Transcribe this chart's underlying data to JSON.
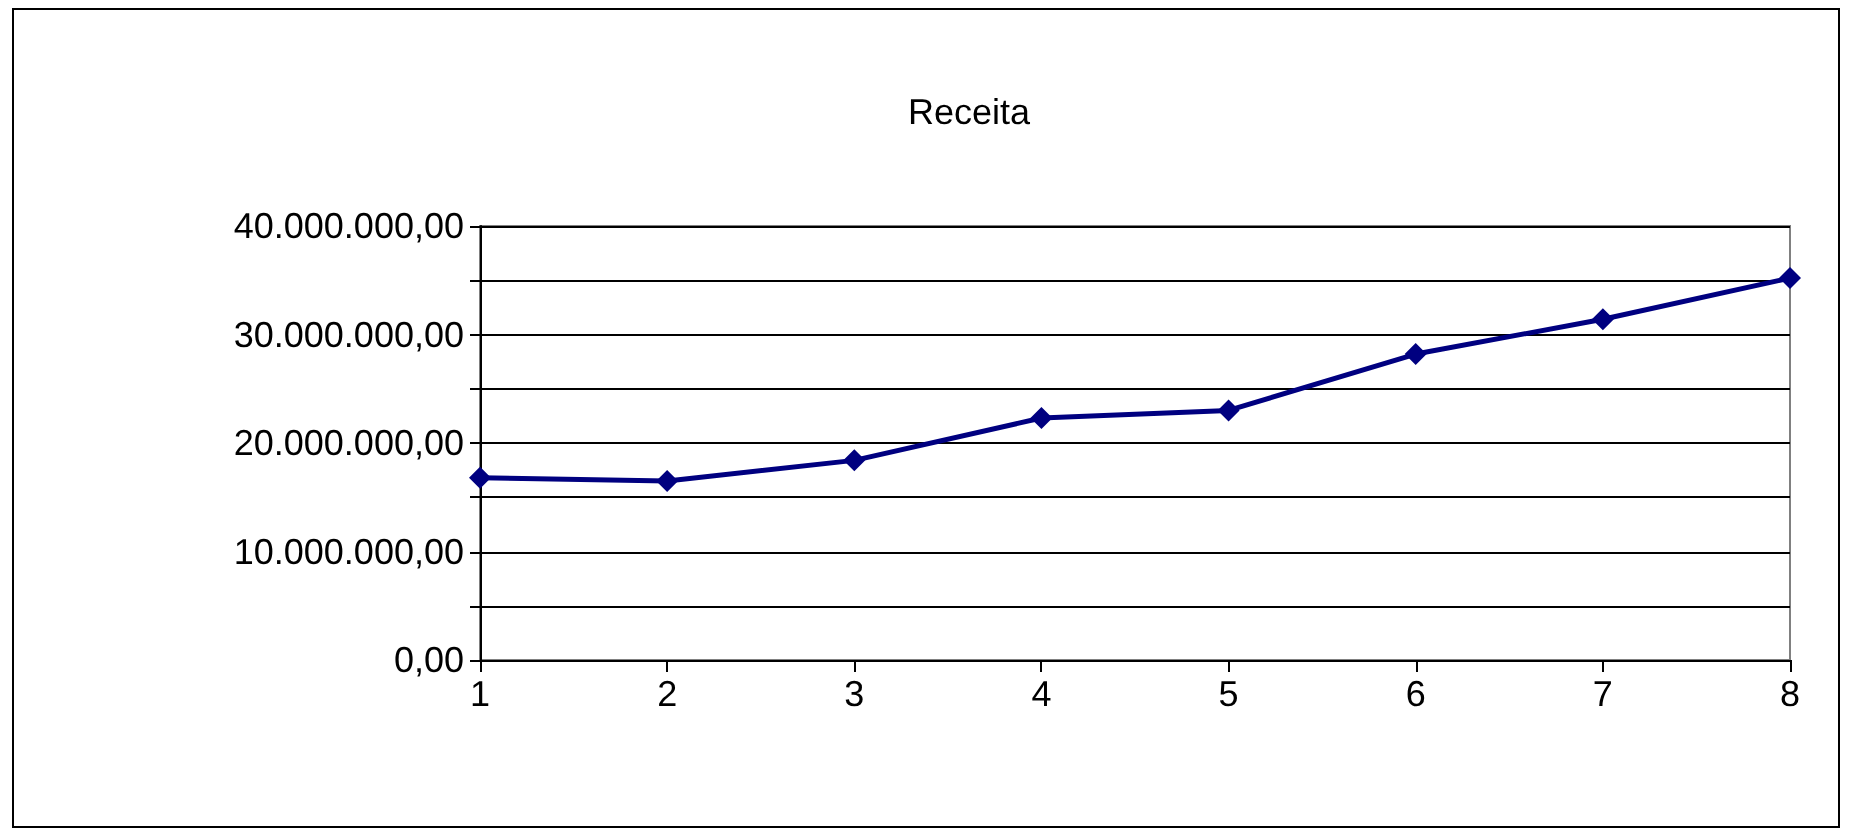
{
  "chart_data": {
    "type": "line",
    "title": "Receita",
    "x": [
      1,
      2,
      3,
      4,
      5,
      6,
      7,
      8
    ],
    "series": [
      {
        "color": "#000080",
        "values": [
          16800000,
          16500000,
          18400000,
          22300000,
          23000000,
          28200000,
          31400000,
          35200000
        ]
      }
    ],
    "xlim": [
      1,
      8
    ],
    "xticks": [
      1,
      2,
      3,
      4,
      5,
      6,
      7,
      8
    ],
    "ylim": [
      0,
      40000000
    ],
    "yticks": [
      {
        "value": 0,
        "label": "0,00"
      },
      {
        "value": 5000000,
        "label": null
      },
      {
        "value": 10000000,
        "label": "10.000.000,00"
      },
      {
        "value": 15000000,
        "label": null
      },
      {
        "value": 20000000,
        "label": "20.000.000,00"
      },
      {
        "value": 25000000,
        "label": null
      },
      {
        "value": 30000000,
        "label": "30.000.000,00"
      },
      {
        "value": 35000000,
        "label": null
      },
      {
        "value": 40000000,
        "label": "40.000.000,00"
      }
    ],
    "grid": "y",
    "marker": "diamond",
    "line_style": "solid"
  }
}
